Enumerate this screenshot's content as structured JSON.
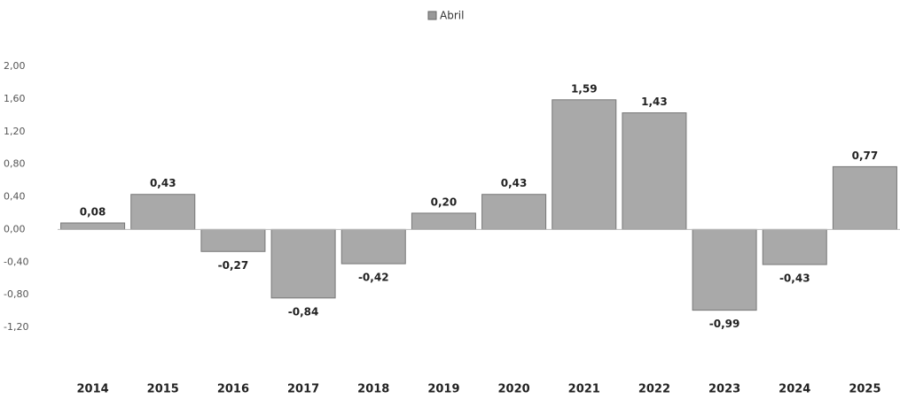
{
  "chart_data": {
    "type": "bar",
    "legend": "Abril",
    "color": "#a9a9a9",
    "categories": [
      "2014",
      "2015",
      "2016",
      "2017",
      "2018",
      "2019",
      "2020",
      "2021",
      "2022",
      "2023",
      "2024",
      "2025"
    ],
    "values": [
      0.08,
      0.43,
      -0.27,
      -0.84,
      -0.42,
      0.2,
      0.43,
      1.59,
      1.43,
      -0.99,
      -0.43,
      0.77
    ],
    "value_labels": [
      "0,08",
      "0,43",
      "-0,27",
      "-0,84",
      "-0,42",
      "0,20",
      "0,43",
      "1,59",
      "1,43",
      "-0,99",
      "-0,43",
      "0,77"
    ],
    "ylim": [
      -1.2,
      2.0
    ],
    "yticks": [
      {
        "value": 2.0,
        "label": "2,00"
      },
      {
        "value": 1.6,
        "label": "1,60"
      },
      {
        "value": 1.2,
        "label": "1,20"
      },
      {
        "value": 0.8,
        "label": "0,80"
      },
      {
        "value": 0.4,
        "label": "0,40"
      },
      {
        "value": 0,
        "label": "0,00"
      },
      {
        "value": -0.4,
        "label": "-0,40"
      },
      {
        "value": -0.8,
        "label": "-0,80"
      },
      {
        "value": -1.2,
        "label": "-1,20"
      }
    ],
    "grid": false
  }
}
